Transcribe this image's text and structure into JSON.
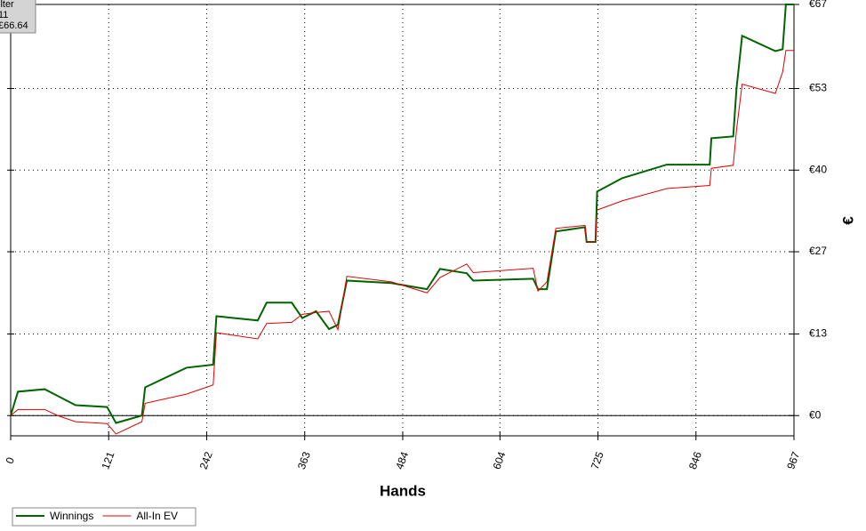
{
  "chart_data": {
    "type": "line",
    "x_label": "Hands",
    "y_label": "€",
    "annotations": [
      "ilter",
      "11",
      "£66.64"
    ],
    "x": [
      0,
      9,
      42,
      58,
      80,
      119,
      130,
      162,
      166,
      217,
      250,
      254,
      305,
      316,
      347,
      360,
      377,
      393,
      404,
      415,
      470,
      514,
      530,
      563,
      571,
      645,
      651,
      662,
      673,
      709,
      711,
      722,
      724,
      755,
      810,
      863,
      865,
      892,
      896,
      903,
      944,
      953,
      957,
      967
    ],
    "series": [
      {
        "name": "Winnings",
        "color": "#006400",
        "width": 2,
        "values": [
          0,
          3.9,
          4.3,
          3.2,
          1.7,
          1.4,
          -1.2,
          0,
          4.6,
          7.8,
          8.3,
          16.2,
          15.5,
          18.4,
          18.4,
          15.9,
          17,
          14.1,
          14.8,
          22,
          21.6,
          20.6,
          23.9,
          23.2,
          22,
          22.3,
          20.6,
          20.6,
          30,
          30.7,
          28.3,
          28.3,
          36.5,
          38.7,
          40.9,
          40.9,
          45.2,
          45.5,
          53.2,
          61.9,
          59.4,
          59.7,
          67,
          67
        ]
      },
      {
        "name": "All-In EV",
        "color": "#e00000",
        "width": 1,
        "values": [
          0,
          1,
          1,
          0,
          -1,
          -1.3,
          -3,
          -1,
          2,
          3.5,
          5,
          13.5,
          12.5,
          15,
          15.2,
          16.5,
          16.8,
          17,
          14,
          22.7,
          21.8,
          20,
          22.5,
          24.7,
          23.3,
          24,
          20.3,
          21.8,
          30.5,
          31,
          28.3,
          28.3,
          33.5,
          35,
          37,
          37.5,
          40.3,
          40.8,
          46.5,
          54,
          52.5,
          56,
          59.5,
          59.5
        ]
      }
    ],
    "xlim": [
      0,
      967
    ],
    "xticks": [
      0,
      121,
      242,
      363,
      484,
      604,
      725,
      846,
      967
    ],
    "ylim": [
      -3.3,
      67
    ],
    "yticks": [
      {
        "value": 0,
        "label": "€0"
      },
      {
        "value": 13.3,
        "label": "€13"
      },
      {
        "value": 26.7,
        "label": "€27"
      },
      {
        "value": 40,
        "label": "€40"
      },
      {
        "value": 53.3,
        "label": "€53"
      },
      {
        "value": 67,
        "label": "€67"
      }
    ],
    "grid": true,
    "legend": "bottom-left"
  }
}
